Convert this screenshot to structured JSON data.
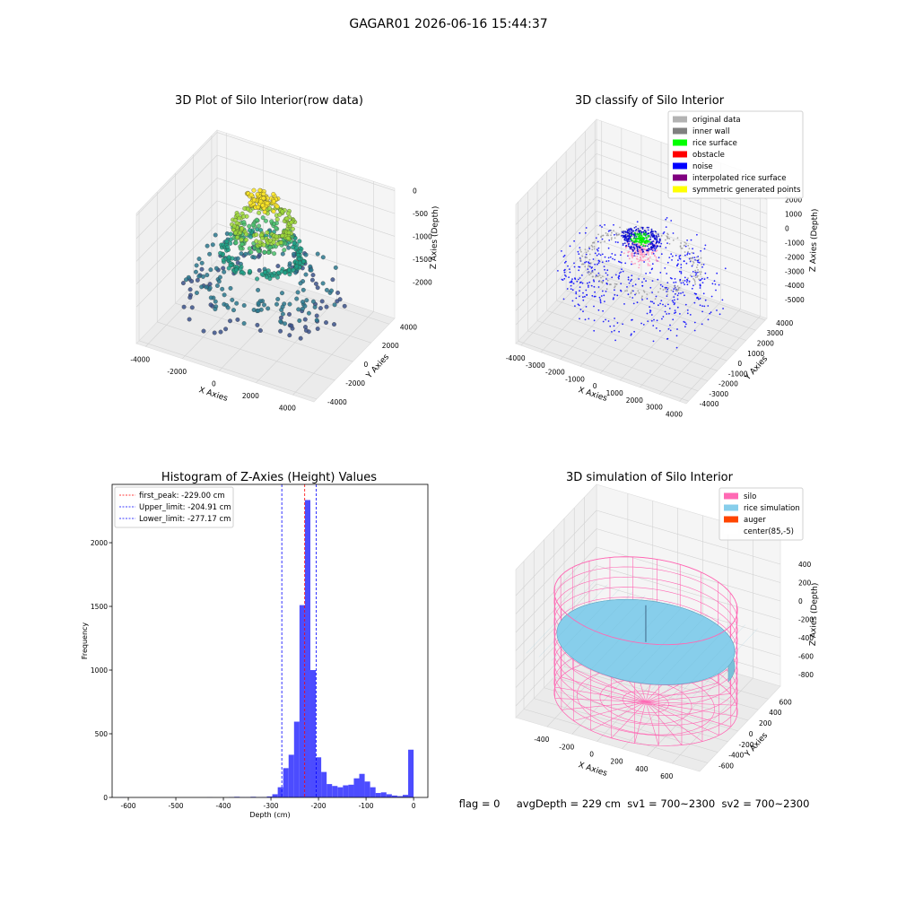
{
  "title": "GAGAR01 2026-06-16 15:44:37",
  "footer": "flag = 0     avgDepth = 229 cm  sv1 = 700~2300  sv2 = 700~2300",
  "chart_data": [
    {
      "type": "scatter3d",
      "title": "3D Plot of Silo Interior(row data)",
      "xlabel": "X Axies",
      "ylabel": "Y Axies",
      "zlabel": "Z Axies (Depth)",
      "xlim": [
        -4500,
        5150
      ],
      "xticks": [
        -4000,
        -2000,
        0,
        2000,
        4000
      ],
      "ylim": [
        -4300,
        4600
      ],
      "yticks": [
        -4000,
        -2000,
        0,
        2000,
        4000
      ],
      "zlim": [
        -2800,
        50
      ],
      "zticks": [
        -2000,
        -1500,
        -1000,
        -500,
        0
      ]
    },
    {
      "type": "scatter3d",
      "title": "3D classify of Silo Interior",
      "xlabel": "X Axies",
      "ylabel": "Y Axies",
      "zlabel": "Z Axies (Depth)",
      "xlim": [
        -4260,
        4340
      ],
      "xticks": [
        -4000,
        -3000,
        -2000,
        -1000,
        0,
        1000,
        2000,
        3000,
        4000
      ],
      "ylim": [
        -4250,
        4170
      ],
      "yticks": [
        -4000,
        -3000,
        -2000,
        -1000,
        0,
        1000,
        2000,
        3000,
        4000
      ],
      "zlim": [
        -6300,
        3400
      ],
      "zticks": [
        -5000,
        -4000,
        -3000,
        -2000,
        -1000,
        0,
        1000,
        2000
      ],
      "legend_loc": "upper right",
      "legend": [
        {
          "name": "original data",
          "color": "#b3b3b3"
        },
        {
          "name": "inner wall",
          "color": "#808080"
        },
        {
          "name": "rice surface",
          "color": "#00ff00"
        },
        {
          "name": "obstacle",
          "color": "#ff0000"
        },
        {
          "name": "noise",
          "color": "#0000ff"
        },
        {
          "name": "interpolated rice surface",
          "color": "#800080"
        },
        {
          "name": "symmetric generated points",
          "color": "#ffff00"
        }
      ]
    },
    {
      "type": "histogram",
      "title": "Histogram of Z-Axies (Height) Values",
      "xlabel": "Depth (cm)",
      "ylabel": "Frequency",
      "color": "#4c4cff",
      "bins": [
        -640,
        -628.57,
        -617.14,
        -605.71,
        -594.29,
        -582.86,
        -571.43,
        -560,
        -548.57,
        -537.14,
        -525.71,
        -514.29,
        -502.86,
        -491.43,
        -480,
        -468.57,
        -457.14,
        -445.71,
        -434.29,
        -422.86,
        -411.43,
        -400,
        -388.57,
        -377.14,
        -365.71,
        -354.29,
        -342.86,
        -331.43,
        -320,
        -308.57,
        -297.14,
        -285.71,
        -274.29,
        -262.86,
        -251.43,
        -240,
        -228.57,
        -217.14,
        -205.71,
        -194.29,
        -182.86,
        -171.43,
        -160,
        -148.57,
        -137.14,
        -125.71,
        -114.29,
        -102.86,
        -91.43,
        -80,
        -68.57,
        -57.14,
        -45.71,
        -34.29,
        -22.86,
        -11.43,
        0
      ],
      "values": [
        0,
        0,
        1,
        0,
        0,
        0,
        0,
        0,
        0,
        0,
        0,
        0,
        0,
        0,
        0,
        0,
        0,
        0,
        1,
        0,
        0,
        0,
        2,
        5,
        2,
        2,
        5,
        2,
        3,
        8,
        25,
        80,
        230,
        335,
        595,
        1510,
        2335,
        1000,
        315,
        200,
        105,
        90,
        80,
        95,
        100,
        150,
        185,
        125,
        80,
        35,
        40,
        25,
        15,
        10,
        20,
        375
      ],
      "xlim": [
        -634,
        30
      ],
      "xticks": [
        -600,
        -500,
        -400,
        -300,
        -200,
        -100,
        0
      ],
      "ylim": [
        0,
        2458
      ],
      "yticks": [
        0,
        500,
        1000,
        1500,
        2000
      ],
      "legend_loc": "upper left",
      "lines": [
        {
          "name": "first_peak: -229.00 cm",
          "value": -229,
          "color": "#ff0000"
        },
        {
          "name": "Upper_limit: -204.91 cm",
          "value": -204.91,
          "color": "#0000ff"
        },
        {
          "name": "Lower_limit: -277.17 cm",
          "value": -277.17,
          "color": "#0000ff"
        }
      ]
    },
    {
      "type": "surface3d",
      "title": "3D simulation of Silo Interior",
      "xlabel": "X Axies",
      "ylabel": "Y Axies",
      "zlabel": "Z Axies (Depth)",
      "xlim": [
        -650,
        820
      ],
      "xticks": [
        -400,
        -200,
        0,
        200,
        400,
        600
      ],
      "ylim": [
        -760,
        840
      ],
      "yticks": [
        -600,
        -400,
        -200,
        0,
        200,
        400,
        600
      ],
      "zlim": [
        -927,
        683
      ],
      "zticks": [
        -800,
        -600,
        -400,
        -200,
        0,
        200,
        400
      ],
      "legend_loc": "upper right",
      "legend": [
        {
          "name": "silo",
          "color": "#ff69b4"
        },
        {
          "name": "rice simulation",
          "color": "#87ceeb"
        },
        {
          "name": "auger",
          "color": "#ff4500"
        },
        {
          "name": "center(85,-5)",
          "color": "#ffffff"
        }
      ]
    }
  ]
}
